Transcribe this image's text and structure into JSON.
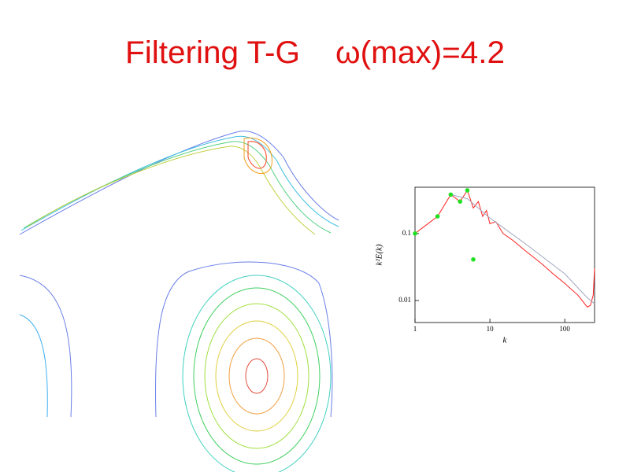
{
  "title": "Filtering T-G    ω(max)=4.2",
  "chart_data": {
    "type": "line",
    "scale": "log",
    "xlabel": "k",
    "ylabel": "k²E(k)",
    "xlim": [
      1,
      250
    ],
    "ylim": [
      0.0047,
      0.49
    ],
    "xticks": [
      1,
      10,
      100
    ],
    "yticks": [
      0.1,
      0.01
    ],
    "series": [
      {
        "color": "#ff2020",
        "style": "line",
        "x": [
          1,
          2,
          3,
          4,
          5,
          6,
          7,
          8,
          9,
          10,
          12,
          15,
          20,
          30,
          50,
          70,
          100,
          150,
          200,
          220,
          240,
          250
        ],
        "values": [
          0.1,
          0.18,
          0.38,
          0.3,
          0.44,
          0.24,
          0.3,
          0.18,
          0.22,
          0.14,
          0.15,
          0.1,
          0.08,
          0.055,
          0.035,
          0.025,
          0.018,
          0.012,
          0.008,
          0.0085,
          0.012,
          0.03
        ]
      },
      {
        "color": "#a0a8c0",
        "style": "line",
        "x": [
          3,
          5,
          10,
          30,
          100,
          200,
          250
        ],
        "values": [
          0.38,
          0.33,
          0.17,
          0.07,
          0.025,
          0.011,
          0.009
        ]
      },
      {
        "color": "#20e020",
        "style": "points",
        "x": [
          1,
          2,
          3,
          4,
          5,
          6
        ],
        "values": [
          0.1,
          0.18,
          0.38,
          0.3,
          0.44,
          0.041
        ]
      }
    ]
  }
}
